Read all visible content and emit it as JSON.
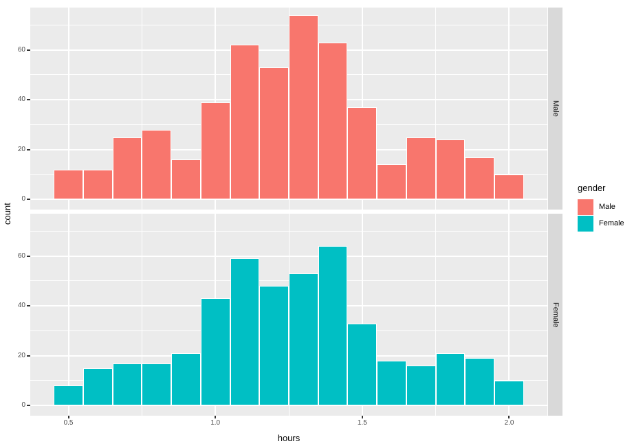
{
  "legend": {
    "title": "gender",
    "items": [
      {
        "label": "Male",
        "color": "#F8766D"
      },
      {
        "label": "Female",
        "color": "#00BFC4"
      }
    ]
  },
  "chart_data": {
    "type": "bar",
    "subtype": "faceted-histogram",
    "title": "",
    "xlabel": "hours",
    "ylabel": "count",
    "facet_variable": "gender",
    "bin_centers": [
      0.5,
      0.6,
      0.7,
      0.8,
      0.9,
      1.0,
      1.1,
      1.2,
      1.3,
      1.4,
      1.5,
      1.6,
      1.7,
      1.8,
      1.9,
      2.0
    ],
    "binwidth": 0.1,
    "series": [
      {
        "name": "Male",
        "color": "#F8766D",
        "values": [
          12,
          12,
          25,
          28,
          16,
          39,
          62,
          53,
          74,
          63,
          37,
          14,
          25,
          24,
          17,
          10
        ]
      },
      {
        "name": "Female",
        "color": "#00BFC4",
        "values": [
          8,
          15,
          17,
          17,
          21,
          43,
          59,
          48,
          53,
          64,
          33,
          18,
          16,
          21,
          19,
          10
        ]
      }
    ],
    "x_ticks": {
      "values": [
        0.5,
        1.0,
        1.5,
        2.0
      ],
      "labels": [
        "0.5",
        "1.0",
        "1.5",
        "2.0"
      ]
    },
    "y_ticks": {
      "values": [
        0,
        20,
        40,
        60
      ],
      "labels": [
        "0",
        "20",
        "40",
        "60"
      ]
    },
    "x_minor": [
      0.75,
      1.25,
      1.75
    ],
    "y_minor": [
      10,
      30,
      50,
      70
    ],
    "x_range": [
      0.37,
      2.13
    ],
    "y_range": [
      -4.1,
      77.0
    ],
    "grid": "on",
    "legend_position": "right"
  },
  "theme": {
    "background": "#FFFFFF",
    "panel_background": "#EBEBEB",
    "strip_background": "#D9D9D9",
    "grid_color": "#FFFFFF",
    "bar_stroke": "#FFFFFF",
    "tick_label_color": "#4D4D4D",
    "tick_mark_color": "#333333",
    "title_color": "#000000",
    "strip_text_color": "#1A1A1A"
  }
}
